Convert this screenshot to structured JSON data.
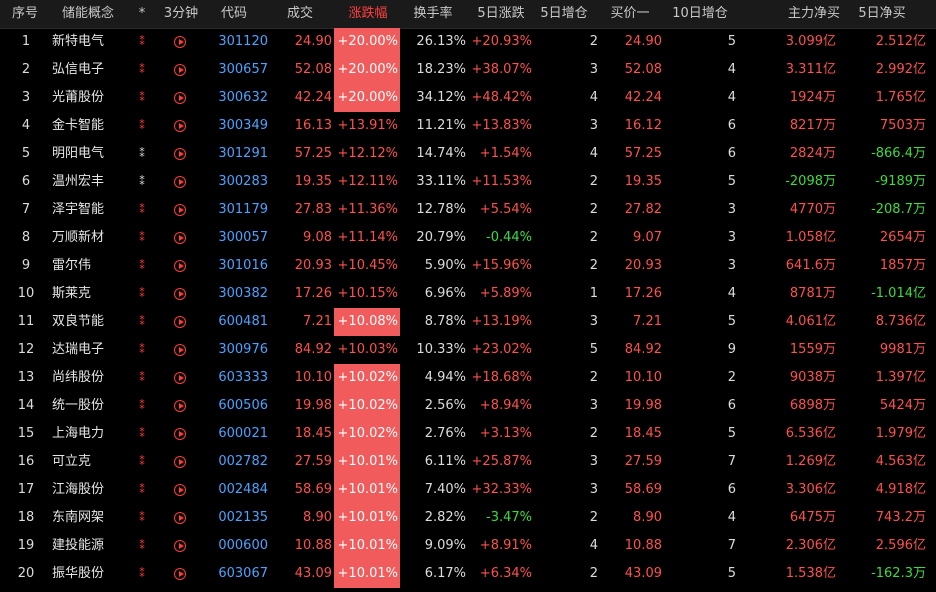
{
  "headers": {
    "idx": "序号",
    "name": "储能概念",
    "star": "*",
    "min3": "3分钟",
    "code": "代码",
    "price": "成交",
    "chg": "涨跌幅",
    "turnover": "换手率",
    "chg5d": "5日涨跌",
    "pos5d": "5日增仓",
    "bid1": "买价一",
    "pos10d": "10日增仓",
    "mainnet": "主力净买",
    "net5d": "5日净买"
  },
  "colors": {
    "up": "#ff5050",
    "down": "#3bdc3b",
    "code": "#4aa3ff",
    "highlight": "#f25b5b"
  },
  "rows": [
    {
      "idx": "1",
      "name": "新特电气",
      "star": "red",
      "code": "301120",
      "price": "24.90",
      "chg": "+20.00%",
      "chg_hl": true,
      "turnover": "26.13%",
      "chg5d": "+20.93%",
      "chg5d_neg": false,
      "pos5d": "2",
      "bid1": "24.90",
      "pos10d": "5",
      "mainnet": "3.099亿",
      "mainnet_neg": false,
      "net5d": "2.512亿",
      "net5d_neg": false
    },
    {
      "idx": "2",
      "name": "弘信电子",
      "star": "red",
      "code": "300657",
      "price": "52.08",
      "chg": "+20.00%",
      "chg_hl": true,
      "turnover": "18.23%",
      "chg5d": "+38.07%",
      "chg5d_neg": false,
      "pos5d": "3",
      "bid1": "52.08",
      "pos10d": "4",
      "mainnet": "3.311亿",
      "mainnet_neg": false,
      "net5d": "2.992亿",
      "net5d_neg": false
    },
    {
      "idx": "3",
      "name": "光莆股份",
      "star": "red",
      "code": "300632",
      "price": "42.24",
      "chg": "+20.00%",
      "chg_hl": true,
      "turnover": "34.12%",
      "chg5d": "+48.42%",
      "chg5d_neg": false,
      "pos5d": "4",
      "bid1": "42.24",
      "pos10d": "4",
      "mainnet": "1924万",
      "mainnet_neg": false,
      "net5d": "1.765亿",
      "net5d_neg": false
    },
    {
      "idx": "4",
      "name": "金卡智能",
      "star": "red",
      "code": "300349",
      "price": "16.13",
      "chg": "+13.91%",
      "chg_hl": false,
      "turnover": "11.21%",
      "chg5d": "+13.83%",
      "chg5d_neg": false,
      "pos5d": "3",
      "bid1": "16.12",
      "pos10d": "6",
      "mainnet": "8217万",
      "mainnet_neg": false,
      "net5d": "7503万",
      "net5d_neg": false
    },
    {
      "idx": "5",
      "name": "明阳电气",
      "star": "white",
      "code": "301291",
      "price": "57.25",
      "chg": "+12.12%",
      "chg_hl": false,
      "turnover": "14.74%",
      "chg5d": "+1.54%",
      "chg5d_neg": false,
      "pos5d": "4",
      "bid1": "57.25",
      "pos10d": "6",
      "mainnet": "2824万",
      "mainnet_neg": false,
      "net5d": "-866.4万",
      "net5d_neg": true
    },
    {
      "idx": "6",
      "name": "温州宏丰",
      "star": "white",
      "code": "300283",
      "price": "19.35",
      "chg": "+12.11%",
      "chg_hl": false,
      "turnover": "33.11%",
      "chg5d": "+11.53%",
      "chg5d_neg": false,
      "pos5d": "2",
      "bid1": "19.35",
      "pos10d": "5",
      "mainnet": "-2098万",
      "mainnet_neg": true,
      "net5d": "-9189万",
      "net5d_neg": true
    },
    {
      "idx": "7",
      "name": "泽宇智能",
      "star": "red",
      "code": "301179",
      "price": "27.83",
      "chg": "+11.36%",
      "chg_hl": false,
      "turnover": "12.78%",
      "chg5d": "+5.54%",
      "chg5d_neg": false,
      "pos5d": "2",
      "bid1": "27.82",
      "pos10d": "3",
      "mainnet": "4770万",
      "mainnet_neg": false,
      "net5d": "-208.7万",
      "net5d_neg": true
    },
    {
      "idx": "8",
      "name": "万顺新材",
      "star": "red",
      "code": "300057",
      "price": "9.08",
      "chg": "+11.14%",
      "chg_hl": false,
      "turnover": "20.79%",
      "chg5d": "-0.44%",
      "chg5d_neg": true,
      "pos5d": "2",
      "bid1": "9.07",
      "pos10d": "3",
      "mainnet": "1.058亿",
      "mainnet_neg": false,
      "net5d": "2654万",
      "net5d_neg": false
    },
    {
      "idx": "9",
      "name": "雷尔伟",
      "star": "red",
      "code": "301016",
      "price": "20.93",
      "chg": "+10.45%",
      "chg_hl": false,
      "turnover": "5.90%",
      "chg5d": "+15.96%",
      "chg5d_neg": false,
      "pos5d": "2",
      "bid1": "20.93",
      "pos10d": "3",
      "mainnet": "641.6万",
      "mainnet_neg": false,
      "net5d": "1857万",
      "net5d_neg": false
    },
    {
      "idx": "10",
      "name": "斯莱克",
      "star": "red",
      "code": "300382",
      "price": "17.26",
      "chg": "+10.15%",
      "chg_hl": false,
      "turnover": "6.96%",
      "chg5d": "+5.89%",
      "chg5d_neg": false,
      "pos5d": "1",
      "bid1": "17.26",
      "pos10d": "4",
      "mainnet": "8781万",
      "mainnet_neg": false,
      "net5d": "-1.014亿",
      "net5d_neg": true
    },
    {
      "idx": "11",
      "name": "双良节能",
      "star": "red",
      "code": "600481",
      "price": "7.21",
      "chg": "+10.08%",
      "chg_hl": true,
      "turnover": "8.78%",
      "chg5d": "+13.19%",
      "chg5d_neg": false,
      "pos5d": "3",
      "bid1": "7.21",
      "pos10d": "5",
      "mainnet": "4.061亿",
      "mainnet_neg": false,
      "net5d": "8.736亿",
      "net5d_neg": false
    },
    {
      "idx": "12",
      "name": "达瑞电子",
      "star": "red",
      "code": "300976",
      "price": "84.92",
      "chg": "+10.03%",
      "chg_hl": false,
      "turnover": "10.33%",
      "chg5d": "+23.02%",
      "chg5d_neg": false,
      "pos5d": "5",
      "bid1": "84.92",
      "pos10d": "9",
      "mainnet": "1559万",
      "mainnet_neg": false,
      "net5d": "9981万",
      "net5d_neg": false
    },
    {
      "idx": "13",
      "name": "尚纬股份",
      "star": "red",
      "code": "603333",
      "price": "10.10",
      "chg": "+10.02%",
      "chg_hl": true,
      "turnover": "4.94%",
      "chg5d": "+18.68%",
      "chg5d_neg": false,
      "pos5d": "2",
      "bid1": "10.10",
      "pos10d": "2",
      "mainnet": "9038万",
      "mainnet_neg": false,
      "net5d": "1.397亿",
      "net5d_neg": false
    },
    {
      "idx": "14",
      "name": "统一股份",
      "star": "red",
      "code": "600506",
      "price": "19.98",
      "chg": "+10.02%",
      "chg_hl": true,
      "turnover": "2.56%",
      "chg5d": "+8.94%",
      "chg5d_neg": false,
      "pos5d": "3",
      "bid1": "19.98",
      "pos10d": "6",
      "mainnet": "6898万",
      "mainnet_neg": false,
      "net5d": "5424万",
      "net5d_neg": false
    },
    {
      "idx": "15",
      "name": "上海电力",
      "star": "red",
      "code": "600021",
      "price": "18.45",
      "chg": "+10.02%",
      "chg_hl": true,
      "turnover": "2.76%",
      "chg5d": "+3.13%",
      "chg5d_neg": false,
      "pos5d": "2",
      "bid1": "18.45",
      "pos10d": "5",
      "mainnet": "6.536亿",
      "mainnet_neg": false,
      "net5d": "1.979亿",
      "net5d_neg": false
    },
    {
      "idx": "16",
      "name": "可立克",
      "star": "red",
      "code": "002782",
      "price": "27.59",
      "chg": "+10.01%",
      "chg_hl": true,
      "turnover": "6.11%",
      "chg5d": "+25.87%",
      "chg5d_neg": false,
      "pos5d": "3",
      "bid1": "27.59",
      "pos10d": "7",
      "mainnet": "1.269亿",
      "mainnet_neg": false,
      "net5d": "4.563亿",
      "net5d_neg": false
    },
    {
      "idx": "17",
      "name": "江海股份",
      "star": "red",
      "code": "002484",
      "price": "58.69",
      "chg": "+10.01%",
      "chg_hl": true,
      "turnover": "7.40%",
      "chg5d": "+32.33%",
      "chg5d_neg": false,
      "pos5d": "3",
      "bid1": "58.69",
      "pos10d": "6",
      "mainnet": "3.306亿",
      "mainnet_neg": false,
      "net5d": "4.918亿",
      "net5d_neg": false
    },
    {
      "idx": "18",
      "name": "东南网架",
      "star": "red",
      "code": "002135",
      "price": "8.90",
      "chg": "+10.01%",
      "chg_hl": true,
      "turnover": "2.82%",
      "chg5d": "-3.47%",
      "chg5d_neg": true,
      "pos5d": "2",
      "bid1": "8.90",
      "pos10d": "4",
      "mainnet": "6475万",
      "mainnet_neg": false,
      "net5d": "743.2万",
      "net5d_neg": false
    },
    {
      "idx": "19",
      "name": "建投能源",
      "star": "red",
      "code": "000600",
      "price": "10.88",
      "chg": "+10.01%",
      "chg_hl": true,
      "turnover": "9.09%",
      "chg5d": "+8.91%",
      "chg5d_neg": false,
      "pos5d": "4",
      "bid1": "10.88",
      "pos10d": "7",
      "mainnet": "2.306亿",
      "mainnet_neg": false,
      "net5d": "2.596亿",
      "net5d_neg": false
    },
    {
      "idx": "20",
      "name": "振华股份",
      "star": "red",
      "code": "603067",
      "price": "43.09",
      "chg": "+10.01%",
      "chg_hl": true,
      "turnover": "6.17%",
      "chg5d": "+6.34%",
      "chg5d_neg": false,
      "pos5d": "2",
      "bid1": "43.09",
      "pos10d": "5",
      "mainnet": "1.538亿",
      "mainnet_neg": false,
      "net5d": "-162.3万",
      "net5d_neg": true
    }
  ]
}
